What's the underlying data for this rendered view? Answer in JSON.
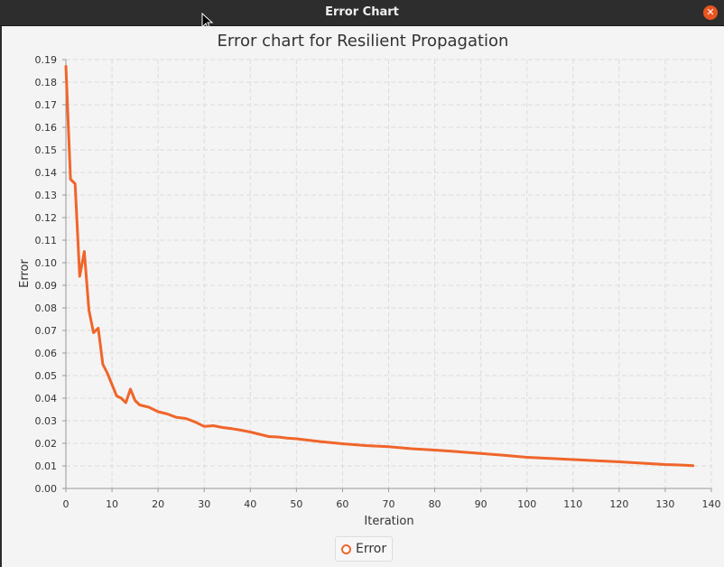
{
  "window": {
    "title": "Error Chart"
  },
  "chart_data": {
    "type": "line",
    "title": "Error chart for Resilient Propagation",
    "xlabel": "Iteration",
    "ylabel": "Error",
    "xlim": [
      0,
      140
    ],
    "ylim": [
      0,
      0.19
    ],
    "xticks": [
      0,
      10,
      20,
      30,
      40,
      50,
      60,
      70,
      80,
      90,
      100,
      110,
      120,
      130,
      140
    ],
    "yticks": [
      0.0,
      0.01,
      0.02,
      0.03,
      0.04,
      0.05,
      0.06,
      0.07,
      0.08,
      0.09,
      0.1,
      0.11,
      0.12,
      0.13,
      0.14,
      0.15,
      0.16,
      0.17,
      0.18,
      0.19
    ],
    "xtick_labels": [
      "0",
      "10",
      "20",
      "30",
      "40",
      "50",
      "60",
      "70",
      "80",
      "90",
      "100",
      "110",
      "120",
      "130",
      "140"
    ],
    "ytick_labels": [
      "0.00",
      "0.01",
      "0.02",
      "0.03",
      "0.04",
      "0.05",
      "0.06",
      "0.07",
      "0.08",
      "0.09",
      "0.10",
      "0.11",
      "0.12",
      "0.13",
      "0.14",
      "0.15",
      "0.16",
      "0.17",
      "0.18",
      "0.19"
    ],
    "grid": true,
    "legend": "bottom-center",
    "series": [
      {
        "name": "Error",
        "color": "#f0652a",
        "x": [
          0,
          1,
          2,
          3,
          4,
          5,
          6,
          7,
          8,
          9,
          10,
          11,
          12,
          13,
          14,
          15,
          16,
          18,
          20,
          22,
          24,
          26,
          28,
          30,
          32,
          34,
          36,
          38,
          40,
          42,
          44,
          46,
          48,
          50,
          55,
          60,
          65,
          70,
          75,
          80,
          85,
          90,
          95,
          100,
          105,
          110,
          115,
          120,
          125,
          130,
          133,
          136
        ],
        "y": [
          0.187,
          0.137,
          0.135,
          0.094,
          0.105,
          0.079,
          0.069,
          0.071,
          0.055,
          0.051,
          0.046,
          0.041,
          0.04,
          0.038,
          0.044,
          0.039,
          0.037,
          0.036,
          0.034,
          0.033,
          0.0315,
          0.031,
          0.0295,
          0.0275,
          0.0278,
          0.027,
          0.0265,
          0.0258,
          0.025,
          0.024,
          0.023,
          0.0228,
          0.0223,
          0.022,
          0.0208,
          0.0198,
          0.019,
          0.0185,
          0.0176,
          0.017,
          0.0163,
          0.0155,
          0.0147,
          0.0138,
          0.0133,
          0.0128,
          0.0123,
          0.0118,
          0.0112,
          0.0106,
          0.0104,
          0.0101
        ]
      }
    ]
  },
  "legend": {
    "label": "Error"
  }
}
